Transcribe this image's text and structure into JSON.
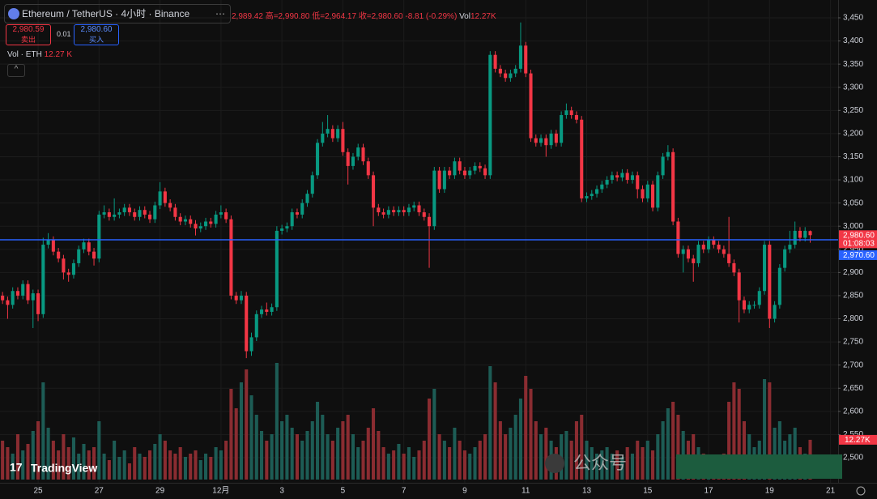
{
  "header": {
    "symbol": "Ethereum / TetherUS · 4小时 · Binance",
    "open": "2,989.42",
    "high": "高=2,990.80",
    "low": "低=2,964.17",
    "close": "收=2,980.60",
    "change": "-8.81 (-0.29%)",
    "vol_label": "Vol",
    "vol_value": "12.27K"
  },
  "trade": {
    "sell_price": "2,980.59",
    "sell_label": "卖出",
    "spread": "0.01",
    "buy_price": "2,980.60",
    "buy_label": "买入"
  },
  "indicator": {
    "name": "Vol · ETH",
    "value": "12.27 K"
  },
  "badges": {
    "last_price": "2,980.60",
    "countdown": "01:08:03",
    "line_price": "2,970.60",
    "volume": "12.27K"
  },
  "watermark": {
    "logo": "TradingView",
    "account": "公众号"
  },
  "chart_data": {
    "type": "candlestick",
    "up_color": "#089981",
    "down_color": "#f23645",
    "volume_up_color": "#1d5c55",
    "volume_down_color": "#8a2c31",
    "price_line_color": "#2962ff",
    "price_line": 2970.6,
    "xlim": [
      -0.5,
      164.5
    ],
    "xticks": [
      {
        "value": 7,
        "label": "25"
      },
      {
        "value": 19,
        "label": "27"
      },
      {
        "value": 31,
        "label": "29"
      },
      {
        "value": 43,
        "label": "12月"
      },
      {
        "value": 55,
        "label": "3"
      },
      {
        "value": 67,
        "label": "5"
      },
      {
        "value": 79,
        "label": "7"
      },
      {
        "value": 91,
        "label": "9"
      },
      {
        "value": 103,
        "label": "11"
      },
      {
        "value": 115,
        "label": "13"
      },
      {
        "value": 127,
        "label": "15"
      },
      {
        "value": 139,
        "label": "17"
      },
      {
        "value": 151,
        "label": "19"
      },
      {
        "value": 163,
        "label": "21"
      }
    ],
    "ylim": [
      2460,
      3480
    ],
    "yticks": [
      {
        "value": 2500,
        "label": "2,500"
      },
      {
        "value": 2550,
        "label": "2,550"
      },
      {
        "value": 2600,
        "label": "2,600"
      },
      {
        "value": 2650,
        "label": "2,650"
      },
      {
        "value": 2700,
        "label": "2,700"
      },
      {
        "value": 2750,
        "label": "2,750"
      },
      {
        "value": 2800,
        "label": "2,800"
      },
      {
        "value": 2850,
        "label": "2,850"
      },
      {
        "value": 2900,
        "label": "2,900"
      },
      {
        "value": 2950,
        "label": "2,950"
      },
      {
        "value": 3000,
        "label": "3,000"
      },
      {
        "value": 3050,
        "label": "3,050"
      },
      {
        "value": 3100,
        "label": "3,100"
      },
      {
        "value": 3150,
        "label": "3,150"
      },
      {
        "value": 3200,
        "label": "3,200"
      },
      {
        "value": 3250,
        "label": "3,250"
      },
      {
        "value": 3300,
        "label": "3,300"
      },
      {
        "value": 3350,
        "label": "3,350"
      },
      {
        "value": 3400,
        "label": "3,400"
      },
      {
        "value": 3450,
        "label": "3,450"
      }
    ],
    "grid": true,
    "open": [
      2850,
      2840,
      2830,
      2860,
      2850,
      2875,
      2840,
      2855,
      2810,
      2960,
      2970,
      2945,
      2930,
      2900,
      2895,
      2920,
      2950,
      2965,
      2945,
      2930,
      3025,
      3030,
      3020,
      3025,
      3030,
      3040,
      3030,
      3020,
      3035,
      3025,
      3015,
      3045,
      3075,
      3050,
      3040,
      3020,
      3010,
      3015,
      3005,
      2995,
      3000,
      3010,
      3005,
      3025,
      3030,
      3015,
      2850,
      2840,
      2850,
      2730,
      2760,
      2810,
      2820,
      2815,
      2825,
      2990,
      2995,
      3000,
      3030,
      3025,
      3050,
      3070,
      3110,
      3180,
      3200,
      3210,
      3190,
      3210,
      3160,
      3130,
      3150,
      3170,
      3140,
      3110,
      3040,
      3030,
      3025,
      3035,
      3030,
      3035,
      3030,
      3040,
      3045,
      3030,
      3020,
      3000,
      3120,
      3080,
      3120,
      3110,
      3140,
      3120,
      3110,
      3120,
      3130,
      3125,
      3110,
      3370,
      3340,
      3330,
      3320,
      3330,
      3340,
      3390,
      3330,
      3190,
      3180,
      3190,
      3175,
      3200,
      3180,
      3240,
      3250,
      3240,
      3230,
      3060,
      3065,
      3070,
      3080,
      3090,
      3100,
      3110,
      3105,
      3115,
      3100,
      3110,
      3080,
      3060,
      3090,
      3040,
      3110,
      3150,
      3160,
      3010,
      2940,
      2950,
      2930,
      2920,
      2960,
      2950,
      2970,
      2960,
      2950,
      2940,
      2920,
      2900,
      2840,
      2820,
      2830,
      2830,
      2860,
      2960,
      2800,
      2830,
      2910,
      2950,
      2960,
      2990,
      2975,
      2989.42
    ],
    "high": [
      2858,
      2848,
      2868,
      2868,
      2883,
      2883,
      2863,
      2863,
      2975,
      2985,
      2978,
      2953,
      2938,
      2908,
      2928,
      2958,
      2973,
      2973,
      2953,
      3033,
      3045,
      3038,
      3060,
      3038,
      3048,
      3048,
      3038,
      3043,
      3043,
      3033,
      3053,
      3095,
      3083,
      3058,
      3048,
      3028,
      3023,
      3023,
      3013,
      3008,
      3018,
      3018,
      3033,
      3045,
      3038,
      3023,
      2858,
      2860,
      2858,
      2770,
      2818,
      2828,
      2835,
      2833,
      3000,
      3003,
      3008,
      3038,
      3038,
      3058,
      3078,
      3118,
      3188,
      3225,
      3240,
      3218,
      3218,
      3225,
      3168,
      3158,
      3178,
      3178,
      3148,
      3118,
      3048,
      3038,
      3043,
      3043,
      3043,
      3043,
      3048,
      3053,
      3053,
      3038,
      3028,
      3128,
      3128,
      3128,
      3128,
      3148,
      3148,
      3128,
      3128,
      3138,
      3138,
      3133,
      3378,
      3378,
      3348,
      3338,
      3338,
      3348,
      3440,
      3398,
      3338,
      3198,
      3198,
      3198,
      3208,
      3208,
      3248,
      3265,
      3258,
      3248,
      3238,
      3073,
      3078,
      3088,
      3098,
      3108,
      3118,
      3118,
      3123,
      3123,
      3118,
      3118,
      3088,
      3098,
      3098,
      3118,
      3158,
      3175,
      3168,
      3018,
      2958,
      2958,
      2938,
      2968,
      2968,
      2978,
      2978,
      2968,
      2958,
      3020,
      2928,
      2908,
      2848,
      2838,
      2838,
      2868,
      2968,
      2968,
      2838,
      2918,
      2958,
      2990,
      3010,
      2998,
      2998,
      2990.8
    ],
    "low": [
      2832,
      2800,
      2822,
      2842,
      2842,
      2832,
      2780,
      2795,
      2802,
      2952,
      2937,
      2922,
      2885,
      2880,
      2887,
      2912,
      2942,
      2937,
      2915,
      2922,
      3017,
      3012,
      3012,
      3017,
      3022,
      3022,
      3012,
      3012,
      3017,
      3007,
      3007,
      3037,
      3042,
      3032,
      3012,
      3002,
      3002,
      2997,
      2980,
      2987,
      2992,
      2997,
      2997,
      3017,
      3007,
      2842,
      2832,
      2832,
      2715,
      2720,
      2752,
      2802,
      2807,
      2807,
      2817,
      2982,
      2987,
      2992,
      3017,
      3017,
      3042,
      3062,
      3102,
      3172,
      3192,
      3182,
      3182,
      3152,
      3090,
      3122,
      3142,
      3132,
      3102,
      3000,
      3022,
      3017,
      3017,
      3022,
      3022,
      3022,
      3022,
      3032,
      3022,
      3012,
      2910,
      2992,
      3072,
      3072,
      3102,
      3102,
      3112,
      3102,
      3102,
      3112,
      3117,
      3102,
      3102,
      3332,
      3322,
      3312,
      3312,
      3322,
      3332,
      3322,
      3182,
      3172,
      3172,
      3150,
      3167,
      3172,
      3172,
      3232,
      3232,
      3222,
      3052,
      3052,
      3057,
      3062,
      3072,
      3082,
      3092,
      3097,
      3097,
      3092,
      3092,
      3060,
      3052,
      3052,
      3032,
      3032,
      3102,
      3142,
      3002,
      2932,
      2900,
      2922,
      2880,
      2912,
      2942,
      2942,
      2952,
      2942,
      2932,
      2912,
      2892,
      2792,
      2812,
      2812,
      2822,
      2822,
      2852,
      2780,
      2792,
      2822,
      2902,
      2942,
      2952,
      2967,
      2967,
      2964.17
    ],
    "close": [
      2840,
      2830,
      2860,
      2850,
      2875,
      2840,
      2855,
      2810,
      2960,
      2970,
      2945,
      2930,
      2900,
      2895,
      2920,
      2950,
      2965,
      2945,
      2930,
      3025,
      3030,
      3020,
      3025,
      3030,
      3040,
      3030,
      3020,
      3035,
      3025,
      3015,
      3045,
      3075,
      3050,
      3040,
      3020,
      3010,
      3015,
      3005,
      2995,
      3000,
      3010,
      3005,
      3025,
      3030,
      3015,
      2850,
      2840,
      2850,
      2730,
      2760,
      2810,
      2820,
      2815,
      2825,
      2990,
      2995,
      3000,
      3030,
      3025,
      3050,
      3070,
      3110,
      3180,
      3200,
      3210,
      3190,
      3210,
      3160,
      3130,
      3150,
      3170,
      3140,
      3110,
      3040,
      3030,
      3025,
      3035,
      3030,
      3035,
      3030,
      3040,
      3045,
      3030,
      3020,
      3000,
      3120,
      3080,
      3120,
      3110,
      3140,
      3120,
      3110,
      3120,
      3130,
      3125,
      3110,
      3370,
      3340,
      3330,
      3320,
      3330,
      3340,
      3390,
      3330,
      3190,
      3180,
      3190,
      3175,
      3200,
      3180,
      3240,
      3250,
      3240,
      3230,
      3060,
      3065,
      3070,
      3080,
      3090,
      3100,
      3110,
      3105,
      3115,
      3100,
      3110,
      3080,
      3060,
      3090,
      3040,
      3110,
      3150,
      3160,
      3010,
      2940,
      2950,
      2930,
      2920,
      2960,
      2950,
      2970,
      2960,
      2950,
      2940,
      2920,
      2900,
      2840,
      2820,
      2830,
      2830,
      2860,
      2960,
      2800,
      2830,
      2910,
      2950,
      2960,
      2990,
      2975,
      2990,
      2980.6
    ],
    "volume": {
      "ylim": [
        0,
        40
      ],
      "values": [
        12,
        10,
        8,
        14,
        9,
        11,
        15,
        18,
        30,
        16,
        12,
        9,
        14,
        10,
        13,
        8,
        11,
        9,
        10,
        18,
        8,
        6,
        12,
        7,
        9,
        5,
        10,
        8,
        7,
        9,
        11,
        14,
        12,
        9,
        8,
        10,
        7,
        8,
        9,
        6,
        8,
        7,
        10,
        9,
        12,
        28,
        22,
        30,
        34,
        26,
        20,
        15,
        12,
        14,
        36,
        18,
        20,
        16,
        14,
        12,
        15,
        18,
        24,
        20,
        14,
        12,
        16,
        18,
        20,
        14,
        10,
        12,
        16,
        22,
        15,
        10,
        8,
        9,
        11,
        8,
        10,
        7,
        9,
        12,
        25,
        28,
        14,
        12,
        10,
        16,
        12,
        9,
        8,
        10,
        12,
        14,
        35,
        30,
        18,
        14,
        16,
        20,
        25,
        32,
        28,
        18,
        14,
        16,
        12,
        10,
        14,
        15,
        12,
        18,
        20,
        12,
        10,
        8,
        9,
        10,
        8,
        9,
        7,
        10,
        8,
        12,
        10,
        12,
        9,
        14,
        18,
        22,
        24,
        20,
        15,
        12,
        14,
        10,
        8,
        6,
        7,
        5,
        8,
        24,
        30,
        28,
        18,
        14,
        10,
        12,
        31,
        30,
        16,
        18,
        12,
        14,
        16,
        10,
        8,
        12.27
      ]
    }
  }
}
